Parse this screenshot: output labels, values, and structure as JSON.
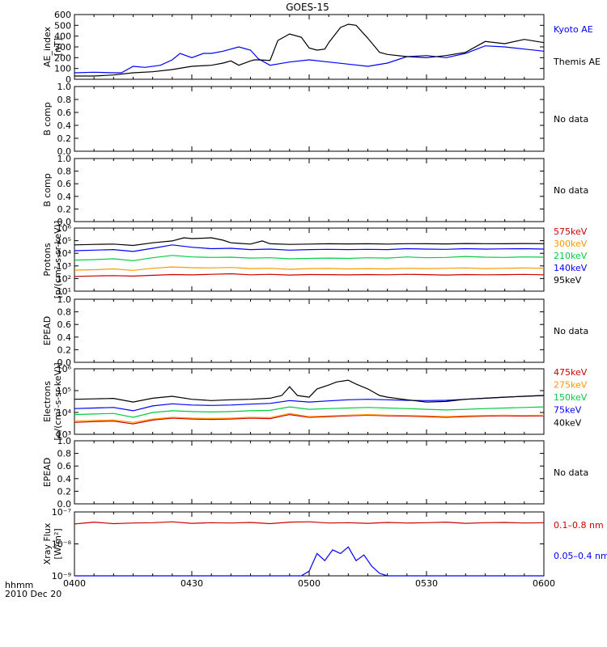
{
  "chart_data": {
    "type": "line",
    "title": "GOES-15",
    "xaxis": {
      "ticks": [
        "0400",
        "0430",
        "0500",
        "0530",
        "0600"
      ],
      "range": [
        "04:00",
        "06:00"
      ],
      "unit_label": "hhmm",
      "date_label": "2010 Dec 20"
    },
    "panels": [
      {
        "id": "ae",
        "ylabel": "AE_index",
        "yunit": "[nT]",
        "scale": "linear",
        "ylim": [
          0,
          600
        ],
        "yticks": [
          "0",
          "100",
          "200",
          "300",
          "400",
          "500",
          "600"
        ],
        "series": [
          {
            "name": "Kyoto AE",
            "color": "#0000ff",
            "x": [
              0,
              5,
              10,
              12,
              15,
              18,
              22,
              25,
              27,
              30,
              33,
              35,
              38,
              42,
              45,
              47,
              50,
              55,
              60,
              65,
              70,
              75,
              80,
              85,
              90,
              95,
              100,
              105,
              110,
              115,
              120
            ],
            "y": [
              60,
              65,
              60,
              60,
              120,
              110,
              130,
              180,
              240,
              200,
              240,
              240,
              260,
              300,
              270,
              190,
              130,
              160,
              180,
              160,
              140,
              120,
              150,
              210,
              220,
              200,
              240,
              310,
              300,
              280,
              260
            ]
          },
          {
            "name": "Themis AE",
            "color": "#000000",
            "x": [
              0,
              5,
              10,
              15,
              20,
              25,
              30,
              35,
              38,
              40,
              42,
              45,
              46,
              47,
              50,
              52,
              55,
              58,
              60,
              62,
              64,
              65,
              68,
              70,
              72,
              75,
              78,
              80,
              85,
              90,
              95,
              100,
              105,
              110,
              115,
              120
            ],
            "y": [
              30,
              30,
              40,
              60,
              70,
              90,
              120,
              130,
              150,
              170,
              130,
              170,
              180,
              180,
              175,
              360,
              420,
              390,
              290,
              270,
              280,
              340,
              480,
              510,
              500,
              380,
              250,
              230,
              210,
              200,
              220,
              250,
              350,
              330,
              370,
              340
            ]
          }
        ]
      },
      {
        "id": "b1",
        "ylabel": "B comp",
        "scale": "linear",
        "ylim": [
          0,
          1
        ],
        "yticks": [
          "0.0",
          "0.2",
          "0.4",
          "0.6",
          "0.8",
          "1.0"
        ],
        "right_note": "No data",
        "series": []
      },
      {
        "id": "b2",
        "ylabel": "B comp",
        "scale": "linear",
        "ylim": [
          0,
          1
        ],
        "yticks": [
          "0.0",
          "0.2",
          "0.4",
          "0.6",
          "0.8",
          "1.0"
        ],
        "right_note": "No data",
        "series": []
      },
      {
        "id": "protons",
        "ylabel": "Protons",
        "yunit": "[p/(cm²-s-sr-keV)]",
        "scale": "log",
        "ylim": [
          1,
          1000000
        ],
        "yticks": [
          "10¹",
          "10²",
          "10³",
          "10⁴",
          "10⁵",
          "10⁶"
        ],
        "series": [
          {
            "name": "575keV",
            "color": "#cc0000",
            "x": [
              0,
              5,
              10,
              15,
              20,
              25,
              30,
              35,
              40,
              45,
              50,
              55,
              60,
              65,
              70,
              75,
              80,
              85,
              90,
              95,
              100,
              105,
              110,
              115,
              120
            ],
            "y": [
              25,
              28,
              30,
              27,
              32,
              38,
              35,
              40,
              45,
              36,
              40,
              34,
              38,
              37,
              35,
              38,
              36,
              40,
              37,
              34,
              38,
              36,
              37,
              39,
              36
            ]
          },
          {
            "name": "300keV",
            "color": "#ff9900",
            "x": [
              0,
              5,
              10,
              15,
              20,
              25,
              30,
              35,
              40,
              45,
              50,
              55,
              60,
              65,
              70,
              75,
              80,
              85,
              90,
              95,
              100,
              105,
              110,
              115,
              120
            ],
            "y": [
              100,
              110,
              130,
              95,
              150,
              200,
              170,
              160,
              180,
              140,
              150,
              120,
              140,
              145,
              130,
              140,
              130,
              150,
              140,
              150,
              160,
              140,
              150,
              160,
              150
            ]
          },
          {
            "name": "210keV",
            "color": "#00cc44",
            "x": [
              0,
              5,
              10,
              15,
              20,
              25,
              30,
              35,
              40,
              45,
              50,
              55,
              60,
              65,
              70,
              75,
              80,
              85,
              90,
              95,
              100,
              105,
              110,
              115,
              120
            ],
            "y": [
              900,
              1000,
              1200,
              800,
              1500,
              2500,
              1800,
              1600,
              1700,
              1400,
              1500,
              1200,
              1300,
              1400,
              1300,
              1500,
              1400,
              1800,
              1500,
              1600,
              2000,
              1700,
              1600,
              1800,
              1700
            ]
          },
          {
            "name": "140keV",
            "color": "#0000ff",
            "x": [
              0,
              5,
              10,
              15,
              20,
              25,
              30,
              35,
              40,
              45,
              50,
              55,
              60,
              65,
              70,
              75,
              80,
              85,
              90,
              95,
              100,
              105,
              110,
              115,
              120
            ],
            "y": [
              7000,
              8000,
              9000,
              6000,
              12000,
              25000,
              15000,
              11000,
              12000,
              9000,
              10000,
              8000,
              9000,
              9500,
              9000,
              9500,
              9000,
              11000,
              10000,
              9500,
              11000,
              10000,
              10500,
              11000,
              10000
            ]
          },
          {
            "name": "95keV",
            "color": "#000000",
            "x": [
              0,
              5,
              10,
              15,
              20,
              25,
              28,
              30,
              33,
              35,
              38,
              40,
              42,
              45,
              48,
              50,
              55,
              60,
              65,
              70,
              75,
              80,
              85,
              90,
              95,
              100,
              105,
              110,
              115,
              120
            ],
            "y": [
              25000,
              28000,
              30000,
              22000,
              40000,
              60000,
              120000,
              100000,
              110000,
              120000,
              70000,
              40000,
              35000,
              30000,
              60000,
              32000,
              28000,
              30000,
              32000,
              31000,
              32000,
              30000,
              33000,
              32000,
              31000,
              34000,
              33000,
              32000,
              34000,
              33000
            ]
          }
        ]
      },
      {
        "id": "epead1",
        "ylabel": "EPEAD",
        "scale": "linear",
        "ylim": [
          0,
          1
        ],
        "yticks": [
          "0.0",
          "0.2",
          "0.4",
          "0.6",
          "0.8",
          "1.0"
        ],
        "right_note": "No data",
        "series": []
      },
      {
        "id": "electrons",
        "ylabel": "Electrons",
        "yunit": "[e/(cm²-s-sr-keV)]",
        "scale": "log",
        "ylim": [
          1000,
          1000000
        ],
        "yticks": [
          "10³",
          "10⁴",
          "10⁵",
          "10⁶"
        ],
        "series": [
          {
            "name": "475keV",
            "color": "#cc0000",
            "x": [
              0,
              5,
              10,
              15,
              20,
              25,
              30,
              35,
              40,
              45,
              50,
              55,
              60,
              65,
              70,
              75,
              80,
              85,
              90,
              95,
              100,
              105,
              110,
              115,
              120
            ],
            "y": [
              3500,
              3800,
              4000,
              3000,
              4500,
              5500,
              5000,
              4800,
              5000,
              5500,
              5200,
              8000,
              6000,
              6500,
              7000,
              7500,
              7000,
              6800,
              6500,
              6000,
              6500,
              6800,
              7000,
              6800,
              7000
            ]
          },
          {
            "name": "275keV",
            "color": "#ff9900",
            "x": [
              0,
              5,
              10,
              15,
              20,
              25,
              30,
              35,
              40,
              45,
              50,
              55,
              60,
              65,
              70,
              75,
              80,
              85,
              90,
              95,
              100,
              105,
              110,
              115,
              120
            ],
            "y": [
              4000,
              4300,
              4500,
              3500,
              5000,
              6000,
              5500,
              5300,
              5500,
              6000,
              5800,
              9000,
              6500,
              7000,
              7500,
              8000,
              7500,
              7300,
              7000,
              6500,
              7000,
              7300,
              7500,
              7300,
              7500
            ]
          },
          {
            "name": "150keV",
            "color": "#00cc44",
            "x": [
              0,
              5,
              10,
              15,
              20,
              25,
              30,
              35,
              40,
              45,
              50,
              55,
              60,
              65,
              70,
              75,
              80,
              85,
              90,
              95,
              100,
              105,
              110,
              115,
              120
            ],
            "y": [
              8000,
              8500,
              9000,
              6000,
              10000,
              12000,
              11000,
              10500,
              11000,
              12000,
              12500,
              18000,
              14000,
              15000,
              16000,
              17000,
              16000,
              15000,
              14000,
              13000,
              14000,
              15000,
              16000,
              17000,
              18000
            ]
          },
          {
            "name": "75keV",
            "color": "#0000ff",
            "x": [
              0,
              5,
              10,
              15,
              20,
              25,
              30,
              35,
              40,
              45,
              50,
              55,
              60,
              65,
              70,
              75,
              80,
              85,
              90,
              95,
              100,
              105,
              110,
              115,
              120
            ],
            "y": [
              15000,
              16000,
              17000,
              12000,
              20000,
              25000,
              22000,
              21000,
              22000,
              24000,
              26000,
              35000,
              30000,
              34000,
              38000,
              40000,
              38000,
              36000,
              35000,
              36000,
              40000,
              45000,
              50000,
              55000,
              60000
            ]
          },
          {
            "name": "40keV",
            "color": "#000000",
            "x": [
              0,
              5,
              10,
              15,
              20,
              25,
              30,
              35,
              40,
              45,
              50,
              53,
              55,
              57,
              60,
              62,
              65,
              67,
              70,
              72,
              75,
              78,
              80,
              85,
              90,
              95,
              100,
              105,
              110,
              115,
              120
            ],
            "y": [
              40000,
              42000,
              44000,
              30000,
              45000,
              55000,
              40000,
              35000,
              38000,
              40000,
              45000,
              60000,
              150000,
              60000,
              50000,
              120000,
              180000,
              250000,
              300000,
              200000,
              120000,
              60000,
              50000,
              38000,
              30000,
              32000,
              40000,
              45000,
              50000,
              55000,
              60000
            ]
          }
        ]
      },
      {
        "id": "epead2",
        "ylabel": "EPEAD",
        "scale": "linear",
        "ylim": [
          0,
          1
        ],
        "yticks": [
          "0.0",
          "0.2",
          "0.4",
          "0.6",
          "0.8",
          "1.0"
        ],
        "right_note": "No data",
        "series": []
      },
      {
        "id": "xray",
        "ylabel": "Xray Flux",
        "yunit": "[W/m²]",
        "scale": "log",
        "ylim": [
          1e-09,
          1e-07
        ],
        "yticks": [
          "10⁻⁹",
          "10⁻⁸",
          "10⁻⁷"
        ],
        "series": [
          {
            "name": "0.1–0.8 nm",
            "color": "#cc0000",
            "x": [
              0,
              5,
              10,
              15,
              20,
              25,
              30,
              35,
              40,
              45,
              50,
              55,
              60,
              65,
              70,
              75,
              80,
              85,
              90,
              95,
              100,
              105,
              110,
              115,
              120
            ],
            "y": [
              4.2e-08,
              4.8e-08,
              4.3e-08,
              4.5e-08,
              4.6e-08,
              4.9e-08,
              4.4e-08,
              4.6e-08,
              4.5e-08,
              4.7e-08,
              4.3e-08,
              4.8e-08,
              4.9e-08,
              4.5e-08,
              4.6e-08,
              4.4e-08,
              4.7e-08,
              4.5e-08,
              4.6e-08,
              4.8e-08,
              4.4e-08,
              4.6e-08,
              4.7e-08,
              4.5e-08,
              4.6e-08
            ]
          },
          {
            "name": "0.05–0.4 nm",
            "color": "#0000ff",
            "x": [
              0,
              5,
              10,
              15,
              20,
              25,
              30,
              35,
              40,
              45,
              50,
              55,
              58,
              60,
              62,
              64,
              66,
              68,
              70,
              72,
              74,
              76,
              78,
              80,
              82,
              85,
              90,
              95,
              100,
              105,
              110,
              115,
              120
            ],
            "y": [
              1e-09,
              1e-09,
              1e-09,
              1e-09,
              1e-09,
              1e-09,
              1e-09,
              1e-09,
              1e-09,
              1e-09,
              1e-09,
              1e-09,
              1e-09,
              1.4e-09,
              5e-09,
              3e-09,
              6.5e-09,
              5e-09,
              8e-09,
              3e-09,
              4.5e-09,
              2e-09,
              1.2e-09,
              1e-09,
              1e-09,
              1e-09,
              1e-09,
              1e-09,
              1e-09,
              1e-09,
              1e-09,
              1e-09,
              1e-09
            ]
          }
        ]
      }
    ]
  }
}
